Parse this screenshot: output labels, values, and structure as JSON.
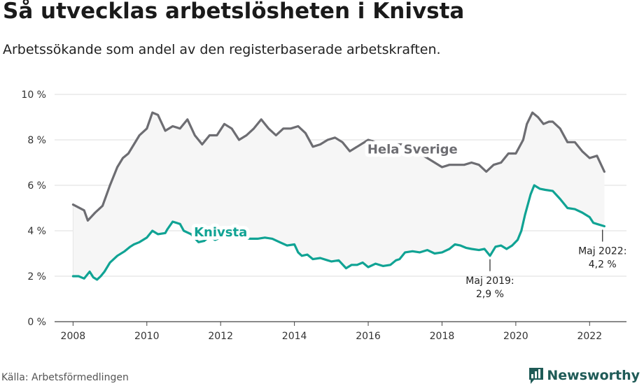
{
  "title": "Så utvecklas arbetslösheten i Knivsta",
  "subtitle": "Arbetssökande som andel av den registerbaserade arbetskraften.",
  "source": "Källa: Arbetsförmedlingen",
  "logo": {
    "text": "Newsworthy",
    "icon": "bar-chart-speech-icon"
  },
  "colors": {
    "sverige": "#6d6d72",
    "knivsta": "#10a394",
    "fill": "#f6f6f6",
    "grid": "#dddddd"
  },
  "chart_data": {
    "type": "line",
    "ylim": [
      0,
      10
    ],
    "xlim": [
      2007.5,
      2023
    ],
    "y_ticks": [
      0,
      2,
      4,
      6,
      8,
      10
    ],
    "y_tick_labels": [
      "0 %",
      "2 %",
      "4 %",
      "6 %",
      "8 %",
      "10 %"
    ],
    "x_ticks": [
      2008,
      2010,
      2012,
      2014,
      2016,
      2018,
      2020,
      2022
    ],
    "x_tick_labels": [
      "2008",
      "2010",
      "2012",
      "2014",
      "2016",
      "2018",
      "2020",
      "2022"
    ],
    "grid": true,
    "series": [
      {
        "name": "Hela Sverige",
        "label_pos": [
          2017.2,
          7.4
        ],
        "x": [
          2008.0,
          2008.3,
          2008.4,
          2008.6,
          2008.8,
          2009.0,
          2009.2,
          2009.35,
          2009.5,
          2009.65,
          2009.8,
          2010.0,
          2010.15,
          2010.3,
          2010.5,
          2010.7,
          2010.9,
          2011.1,
          2011.3,
          2011.5,
          2011.7,
          2011.9,
          2012.1,
          2012.3,
          2012.5,
          2012.7,
          2012.9,
          2013.1,
          2013.3,
          2013.5,
          2013.7,
          2013.9,
          2014.1,
          2014.3,
          2014.5,
          2014.7,
          2014.9,
          2015.1,
          2015.3,
          2015.5,
          2015.7,
          2015.9,
          2016.0,
          2016.2,
          2016.35,
          2016.5,
          2016.8,
          2017.0,
          2017.1,
          2017.3,
          2017.6,
          2017.9,
          2018.0,
          2018.2,
          2018.4,
          2018.6,
          2018.8,
          2019.0,
          2019.2,
          2019.4,
          2019.6,
          2019.8,
          2020.0,
          2020.2,
          2020.3,
          2020.45,
          2020.6,
          2020.75,
          2020.9,
          2021.0,
          2021.2,
          2021.4,
          2021.6,
          2021.8,
          2022.0,
          2022.2,
          2022.4
        ],
        "values": [
          5.15,
          4.9,
          4.45,
          4.8,
          5.1,
          6.0,
          6.8,
          7.2,
          7.4,
          7.8,
          8.2,
          8.5,
          9.2,
          9.1,
          8.4,
          8.6,
          8.5,
          8.9,
          8.2,
          7.8,
          8.2,
          8.2,
          8.7,
          8.5,
          8.0,
          8.2,
          8.5,
          8.9,
          8.5,
          8.2,
          8.5,
          8.5,
          8.6,
          8.3,
          7.7,
          7.8,
          8.0,
          8.1,
          7.9,
          7.5,
          7.7,
          7.9,
          8.0,
          7.9,
          7.7,
          7.6,
          7.8,
          7.8,
          7.7,
          7.5,
          7.2,
          6.9,
          6.8,
          6.9,
          6.9,
          6.9,
          7.0,
          6.9,
          6.6,
          6.9,
          7.0,
          7.4,
          7.4,
          8.0,
          8.7,
          9.2,
          9.0,
          8.7,
          8.8,
          8.8,
          8.5,
          7.9,
          7.9,
          7.5,
          7.2,
          7.3,
          6.6
        ]
      },
      {
        "name": "Knivsta",
        "label_pos": [
          2012.0,
          3.75
        ],
        "x": [
          2008.0,
          2008.15,
          2008.3,
          2008.45,
          2008.55,
          2008.65,
          2008.75,
          2008.85,
          2009.0,
          2009.2,
          2009.4,
          2009.55,
          2009.65,
          2009.8,
          2010.0,
          2010.15,
          2010.3,
          2010.5,
          2010.55,
          2010.7,
          2010.9,
          2011.0,
          2011.2,
          2011.4,
          2011.55,
          2011.7,
          2011.85,
          2012.0,
          2012.2,
          2012.5,
          2012.8,
          2013.0,
          2013.2,
          2013.4,
          2013.6,
          2013.8,
          2014.0,
          2014.1,
          2014.2,
          2014.35,
          2014.5,
          2014.7,
          2014.9,
          2015.0,
          2015.2,
          2015.4,
          2015.55,
          2015.7,
          2015.85,
          2016.0,
          2016.2,
          2016.4,
          2016.6,
          2016.75,
          2016.85,
          2017.0,
          2017.2,
          2017.4,
          2017.6,
          2017.8,
          2018.0,
          2018.2,
          2018.35,
          2018.5,
          2018.65,
          2018.8,
          2019.0,
          2019.15,
          2019.3,
          2019.45,
          2019.6,
          2019.75,
          2019.9,
          2020.05,
          2020.15,
          2020.25,
          2020.4,
          2020.5,
          2020.65,
          2020.8,
          2021.0,
          2021.2,
          2021.4,
          2021.6,
          2021.8,
          2022.0,
          2022.1,
          2022.2,
          2022.4
        ],
        "values": [
          2.0,
          2.0,
          1.9,
          2.2,
          1.95,
          1.85,
          2.0,
          2.2,
          2.6,
          2.9,
          3.1,
          3.3,
          3.4,
          3.5,
          3.7,
          4.0,
          3.85,
          3.9,
          4.05,
          4.4,
          4.3,
          4.0,
          3.85,
          3.5,
          3.55,
          3.75,
          3.6,
          3.7,
          3.7,
          3.7,
          3.65,
          3.65,
          3.7,
          3.65,
          3.5,
          3.35,
          3.4,
          3.05,
          2.9,
          2.95,
          2.75,
          2.8,
          2.7,
          2.65,
          2.7,
          2.35,
          2.5,
          2.5,
          2.6,
          2.4,
          2.55,
          2.45,
          2.5,
          2.7,
          2.75,
          3.05,
          3.1,
          3.05,
          3.15,
          3.0,
          3.05,
          3.2,
          3.4,
          3.35,
          3.25,
          3.2,
          3.15,
          3.2,
          2.9,
          3.3,
          3.35,
          3.2,
          3.35,
          3.6,
          4.0,
          4.7,
          5.6,
          6.0,
          5.85,
          5.8,
          5.75,
          5.4,
          5.0,
          4.95,
          4.8,
          4.6,
          4.35,
          4.3,
          4.2
        ]
      }
    ],
    "annotations": [
      {
        "x": 2019.3,
        "y": 2.9,
        "label_line1": "Maj 2019:",
        "label_line2": "2,9 %",
        "side": "below"
      },
      {
        "x": 2022.35,
        "y": 4.2,
        "label_line1": "Maj 2022:",
        "label_line2": "4,2 %",
        "side": "below"
      }
    ]
  }
}
